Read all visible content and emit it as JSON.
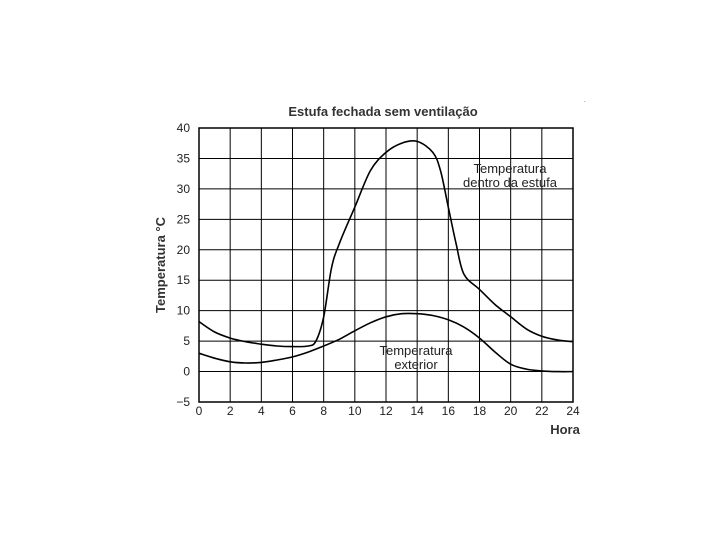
{
  "chart_data": {
    "type": "line",
    "title": "Estufa fechada sem ventilação",
    "xlabel": "Hora",
    "ylabel": "Temperatura °C",
    "xlim": [
      0,
      24
    ],
    "ylim": [
      -5,
      40
    ],
    "x_ticks": [
      0,
      2,
      4,
      6,
      8,
      10,
      12,
      14,
      16,
      18,
      20,
      22,
      24
    ],
    "y_ticks": [
      -5,
      0,
      5,
      10,
      15,
      20,
      25,
      30,
      35,
      40
    ],
    "grid": true,
    "series": [
      {
        "name": "Temperatura dentro da estufa",
        "x": [
          0,
          1,
          2,
          3,
          4,
          5,
          6,
          7,
          7.5,
          8,
          8.5,
          9,
          10,
          11,
          12,
          13,
          14,
          15,
          15.5,
          16,
          16.5,
          17,
          18,
          19,
          20,
          21,
          22,
          23,
          24
        ],
        "y": [
          8.2,
          6.5,
          5.5,
          4.9,
          4.5,
          4.2,
          4.1,
          4.2,
          5,
          9,
          17,
          21,
          27,
          33,
          36,
          37.5,
          37.8,
          36,
          33,
          27,
          21,
          16,
          13.5,
          11,
          9,
          7,
          5.8,
          5.2,
          4.9
        ]
      },
      {
        "name": "Temperatura exterior",
        "x": [
          0,
          1,
          2,
          3,
          4,
          5,
          6,
          7,
          8,
          9,
          10,
          11,
          12,
          13,
          14,
          15,
          16,
          17,
          18,
          19,
          20,
          21,
          22,
          23,
          24
        ],
        "y": [
          3,
          2.2,
          1.6,
          1.4,
          1.5,
          1.9,
          2.4,
          3.2,
          4.2,
          5.3,
          6.7,
          8,
          9,
          9.5,
          9.5,
          9.2,
          8.5,
          7.3,
          5.5,
          3.2,
          1.2,
          0.4,
          0.1,
          0,
          0
        ]
      }
    ],
    "annotations": [
      {
        "lines": [
          "Temperatura",
          "dentro da estufa"
        ]
      },
      {
        "lines": [
          "Temperatura",
          "exterior"
        ]
      }
    ]
  }
}
